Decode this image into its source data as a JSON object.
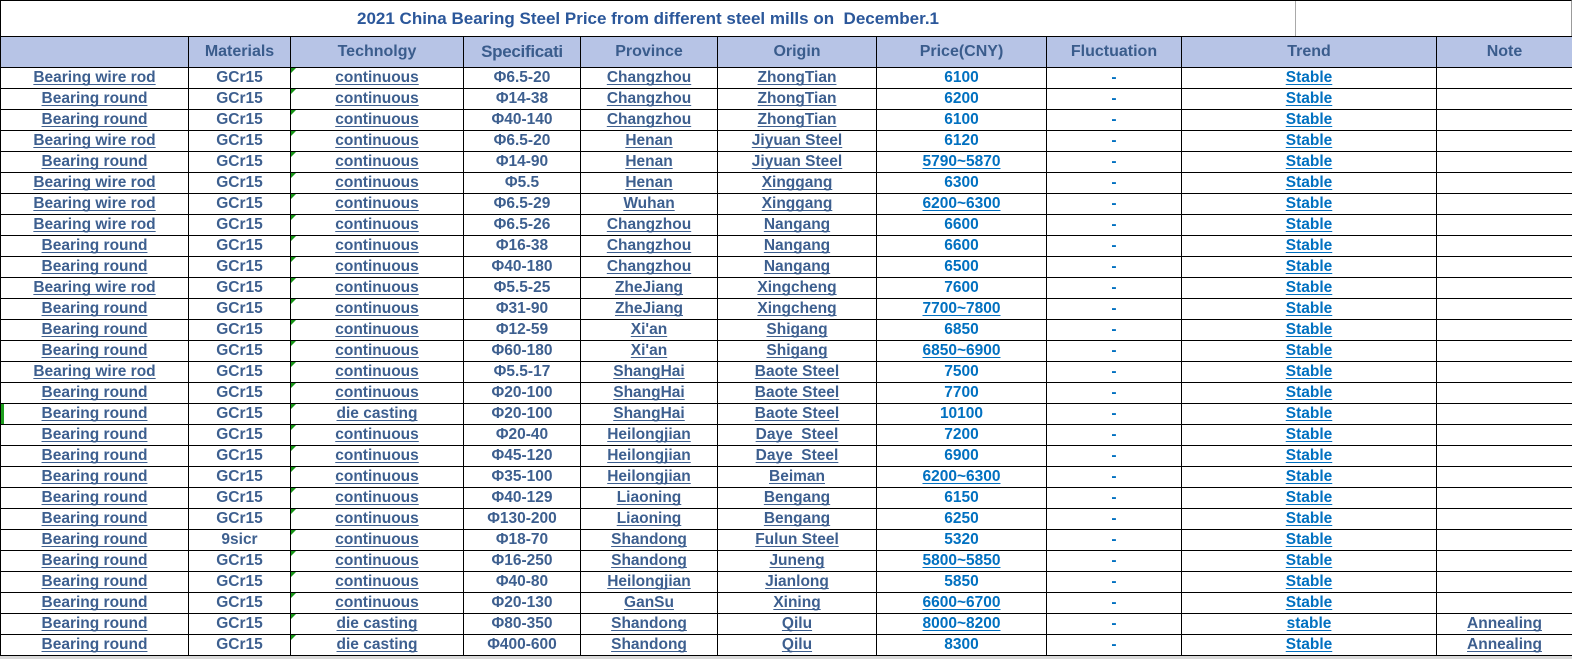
{
  "sheet": {
    "title": "2021 China Bearing Steel Price from different steel mills on  December.1"
  },
  "colors": {
    "header_bg": "#B7C4E6",
    "steel_text": "#3D5F8F",
    "bright_blue_text": "#0070C0",
    "marker_green": "#1E9E1E",
    "grid_border": "#000000"
  },
  "markers": {
    "technology_corner_triangle": "every data row",
    "left_green_bar_row_index": 16
  },
  "table": {
    "columns": [
      {
        "key": "product",
        "label": ""
      },
      {
        "key": "materials",
        "label": "Materials"
      },
      {
        "key": "technology",
        "label": "Technolgy"
      },
      {
        "key": "specification",
        "label": "Specificati"
      },
      {
        "key": "province",
        "label": "Province"
      },
      {
        "key": "origin",
        "label": "Origin"
      },
      {
        "key": "price",
        "label": "Price(CNY)"
      },
      {
        "key": "fluctuation",
        "label": "Fluctuation"
      },
      {
        "key": "trend",
        "label": "Trend"
      },
      {
        "key": "note",
        "label": "Note"
      }
    ],
    "rows": [
      {
        "product": "Bearing wire rod",
        "materials": "GCr15",
        "technology": "continuous",
        "specification": "Φ6.5-20",
        "province": "Changzhou",
        "origin": "ZhongTian",
        "price": "6100",
        "fluctuation": "-",
        "trend": "Stable",
        "note": ""
      },
      {
        "product": "Bearing round",
        "materials": "GCr15",
        "technology": "continuous",
        "specification": "Φ14-38",
        "province": "Changzhou",
        "origin": "ZhongTian",
        "price": "6200",
        "fluctuation": "-",
        "trend": "Stable",
        "note": ""
      },
      {
        "product": "Bearing round",
        "materials": "GCr15",
        "technology": "continuous",
        "specification": "Φ40-140",
        "province": "Changzhou",
        "origin": "ZhongTian",
        "price": "6100",
        "fluctuation": "-",
        "trend": "Stable",
        "note": ""
      },
      {
        "product": "Bearing wire rod",
        "materials": "GCr15",
        "technology": "continuous",
        "specification": "Φ6.5-20",
        "province": "Henan",
        "origin": "Jiyuan Steel",
        "price": "6120",
        "fluctuation": "-",
        "trend": "Stable",
        "note": ""
      },
      {
        "product": "Bearing round",
        "materials": "GCr15",
        "technology": "continuous",
        "specification": "Φ14-90",
        "province": "Henan",
        "origin": "Jiyuan Steel",
        "price": "5790~5870",
        "fluctuation": "-",
        "trend": "Stable",
        "note": ""
      },
      {
        "product": "Bearing wire rod",
        "materials": "GCr15",
        "technology": "continuous",
        "specification": "Φ5.5",
        "province": "Henan",
        "origin": "Xinggang",
        "price": "6300",
        "fluctuation": "-",
        "trend": "Stable",
        "note": ""
      },
      {
        "product": "Bearing wire rod",
        "materials": "GCr15",
        "technology": "continuous",
        "specification": "Φ6.5-29",
        "province": "Wuhan",
        "origin": "Xinggang",
        "price": "6200~6300",
        "fluctuation": "-",
        "trend": "Stable",
        "note": ""
      },
      {
        "product": "Bearing wire rod",
        "materials": "GCr15",
        "technology": "continuous",
        "specification": "Φ6.5-26",
        "province": "Changzhou",
        "origin": "Nangang",
        "price": "6600",
        "fluctuation": "-",
        "trend": "Stable",
        "note": ""
      },
      {
        "product": "Bearing round",
        "materials": "GCr15",
        "technology": "continuous",
        "specification": "Φ16-38",
        "province": "Changzhou",
        "origin": "Nangang",
        "price": "6600",
        "fluctuation": "-",
        "trend": "Stable",
        "note": ""
      },
      {
        "product": "Bearing round",
        "materials": "GCr15",
        "technology": "continuous",
        "specification": "Φ40-180",
        "province": "Changzhou",
        "origin": "Nangang",
        "price": "6500",
        "fluctuation": "-",
        "trend": "Stable",
        "note": ""
      },
      {
        "product": "Bearing wire rod",
        "materials": "GCr15",
        "technology": "continuous",
        "specification": "Φ5.5-25",
        "province": "ZheJiang",
        "origin": "Xingcheng",
        "price": "7600",
        "fluctuation": "-",
        "trend": "Stable",
        "note": ""
      },
      {
        "product": "Bearing round",
        "materials": "GCr15",
        "technology": "continuous",
        "specification": "Φ31-90",
        "province": "ZheJiang",
        "origin": "Xingcheng",
        "price": "7700~7800",
        "fluctuation": "-",
        "trend": "Stable",
        "note": ""
      },
      {
        "product": "Bearing round",
        "materials": "GCr15",
        "technology": "continuous",
        "specification": "Φ12-59",
        "province": "Xi'an",
        "origin": "Shigang",
        "price": "6850",
        "fluctuation": "-",
        "trend": "Stable",
        "note": ""
      },
      {
        "product": "Bearing round",
        "materials": "GCr15",
        "technology": "continuous",
        "specification": "Φ60-180",
        "province": "Xi'an",
        "origin": "Shigang",
        "price": "6850~6900",
        "fluctuation": "-",
        "trend": "Stable",
        "note": ""
      },
      {
        "product": "Bearing wire rod",
        "materials": "GCr15",
        "technology": "continuous",
        "specification": "Φ5.5-17",
        "province": "ShangHai",
        "origin": "Baote Steel",
        "price": "7500",
        "fluctuation": "-",
        "trend": "Stable",
        "note": ""
      },
      {
        "product": "Bearing round",
        "materials": "GCr15",
        "technology": "continuous",
        "specification": "Φ20-100",
        "province": "ShangHai",
        "origin": "Baote Steel",
        "price": "7700",
        "fluctuation": "-",
        "trend": "Stable",
        "note": ""
      },
      {
        "product": "Bearing round",
        "materials": "GCr15",
        "technology": "die casting",
        "specification": "Φ20-100",
        "province": "ShangHai",
        "origin": "Baote Steel",
        "price": "10100",
        "fluctuation": "-",
        "trend": "Stable",
        "note": ""
      },
      {
        "product": "Bearing round",
        "materials": "GCr15",
        "technology": "continuous",
        "specification": "Φ20-40",
        "province": "Heilongjian",
        "origin": "Daye  Steel",
        "price": "7200",
        "fluctuation": "-",
        "trend": "Stable",
        "note": ""
      },
      {
        "product": "Bearing round",
        "materials": "GCr15",
        "technology": "continuous",
        "specification": "Φ45-120",
        "province": "Heilongjian",
        "origin": "Daye  Steel",
        "price": "6900",
        "fluctuation": "-",
        "trend": "Stable",
        "note": ""
      },
      {
        "product": "Bearing round",
        "materials": "GCr15",
        "technology": "continuous",
        "specification": "Φ35-100",
        "province": "Heilongjian",
        "origin": "Beiman",
        "price": "6200~6300",
        "fluctuation": "-",
        "trend": "Stable",
        "note": ""
      },
      {
        "product": "Bearing round",
        "materials": "GCr15",
        "technology": "continuous",
        "specification": "Φ40-129",
        "province": "Liaoning",
        "origin": "Bengang",
        "price": "6150",
        "fluctuation": "-",
        "trend": "Stable",
        "note": ""
      },
      {
        "product": "Bearing round",
        "materials": "GCr15",
        "technology": "continuous",
        "specification": "Φ130-200",
        "province": "Liaoning",
        "origin": "Bengang",
        "price": "6250",
        "fluctuation": "-",
        "trend": "Stable",
        "note": ""
      },
      {
        "product": "Bearing round",
        "materials": "9sicr",
        "technology": "continuous",
        "specification": "Φ18-70",
        "province": "Shandong",
        "origin": "Fulun Steel",
        "price": "5320",
        "fluctuation": "-",
        "trend": "Stable",
        "note": ""
      },
      {
        "product": "Bearing round",
        "materials": "GCr15",
        "technology": "continuous",
        "specification": "Φ16-250",
        "province": "Shandong",
        "origin": "Juneng",
        "price": "5800~5850",
        "fluctuation": "-",
        "trend": "Stable",
        "note": ""
      },
      {
        "product": "Bearing round",
        "materials": "GCr15",
        "technology": "continuous",
        "specification": "Φ40-80",
        "province": "Heilongjian",
        "origin": "Jianlong",
        "price": "5850",
        "fluctuation": "-",
        "trend": "Stable",
        "note": ""
      },
      {
        "product": "Bearing round",
        "materials": "GCr15",
        "technology": "continuous",
        "specification": "Φ20-130",
        "province": "GanSu",
        "origin": "Xining",
        "price": "6600~6700",
        "fluctuation": "-",
        "trend": "Stable",
        "note": ""
      },
      {
        "product": "Bearing round",
        "materials": "GCr15",
        "technology": "die casting",
        "specification": "Φ80-350",
        "province": "Shandong",
        "origin": "Qilu",
        "price": "8000~8200",
        "fluctuation": "-",
        "trend": "stable",
        "note": "Annealing"
      },
      {
        "product": "Bearing round",
        "materials": "GCr15",
        "technology": "die casting",
        "specification": "Φ400-600",
        "province": "Shandong",
        "origin": "Qilu",
        "price": "8300",
        "fluctuation": "-",
        "trend": "Stable",
        "note": "Annealing"
      }
    ]
  }
}
